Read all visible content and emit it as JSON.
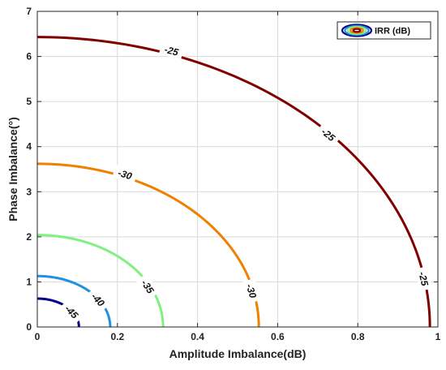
{
  "chart_data": {
    "type": "line",
    "subtype": "contour",
    "title": "",
    "xlabel": "Amplitude Imbalance(dB)",
    "ylabel": "Phase Imbalance(°)",
    "xlim": [
      0,
      1
    ],
    "ylim": [
      0,
      7
    ],
    "xticks": [
      0,
      0.2,
      0.4,
      0.6,
      0.8,
      1
    ],
    "yticks": [
      0,
      1,
      2,
      3,
      4,
      5,
      6,
      7
    ],
    "x_tick_labels": [
      "0",
      "0.2",
      "0.4",
      "0.6",
      "0.8",
      "1"
    ],
    "y_tick_labels": [
      "0",
      "1",
      "2",
      "3",
      "4",
      "5",
      "6",
      "7"
    ],
    "grid": true,
    "legend": {
      "position": "top-right",
      "entries": [
        "IRR (dB)"
      ]
    },
    "series": [
      {
        "level": -25,
        "color": "#800000",
        "x_intercept": 0.98,
        "y_intercept": 6.43,
        "labels": [
          "-25",
          "-25",
          "-25"
        ],
        "label_positions": [
          {
            "x": 0.335,
            "y": 6.13
          },
          {
            "x": 0.727,
            "y": 4.27
          },
          {
            "x": 0.965,
            "y": 1.07
          }
        ]
      },
      {
        "level": -30,
        "color": "#f08000",
        "x_intercept": 0.553,
        "y_intercept": 3.62,
        "labels": [
          "-30",
          "-30"
        ],
        "label_positions": [
          {
            "x": 0.219,
            "y": 3.39
          },
          {
            "x": 0.535,
            "y": 0.8
          }
        ]
      },
      {
        "level": -35,
        "color": "#80f080",
        "x_intercept": 0.314,
        "y_intercept": 2.04,
        "labels": [
          "-35"
        ],
        "label_positions": [
          {
            "x": 0.276,
            "y": 0.9
          }
        ]
      },
      {
        "level": -40,
        "color": "#2090e0",
        "x_intercept": 0.182,
        "y_intercept": 1.13,
        "labels": [
          "-40"
        ],
        "label_positions": [
          {
            "x": 0.152,
            "y": 0.61
          }
        ]
      },
      {
        "level": -45,
        "color": "#00008b",
        "x_intercept": 0.104,
        "y_intercept": 0.63,
        "labels": [
          "-45"
        ],
        "label_positions": [
          {
            "x": 0.086,
            "y": 0.34
          }
        ]
      }
    ]
  }
}
